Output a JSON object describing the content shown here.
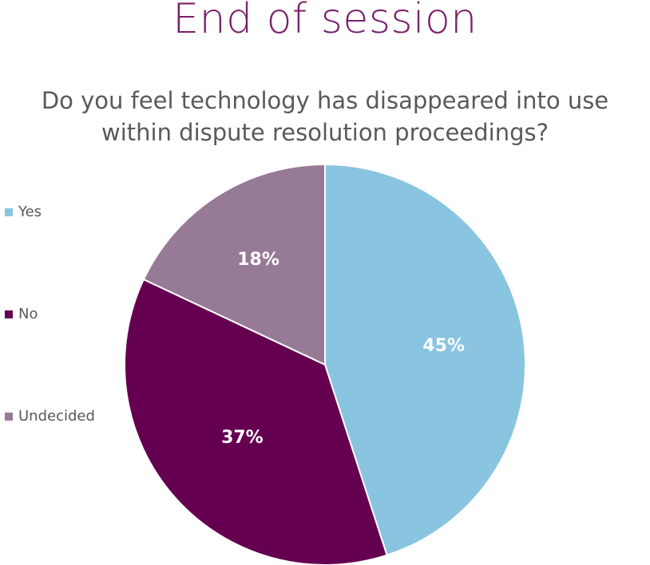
{
  "slide": {
    "title": "End of session"
  },
  "chart_data": {
    "type": "pie",
    "title": "Do you feel technology has disappeared into use within dispute resolution proceedings?",
    "categories": [
      "Yes",
      "No",
      "Undecided"
    ],
    "values": [
      45,
      37,
      18
    ],
    "value_labels": [
      "45%",
      "37%",
      "18%"
    ],
    "colors": [
      "#89c4e1",
      "#650050",
      "#977a95"
    ],
    "start_angle": "12 o'clock",
    "direction": "clockwise",
    "legend_position": "left",
    "legend": [
      {
        "label": "Yes",
        "color": "#89c4e1"
      },
      {
        "label": "No",
        "color": "#650050"
      },
      {
        "label": "Undecided",
        "color": "#977a95"
      }
    ]
  }
}
